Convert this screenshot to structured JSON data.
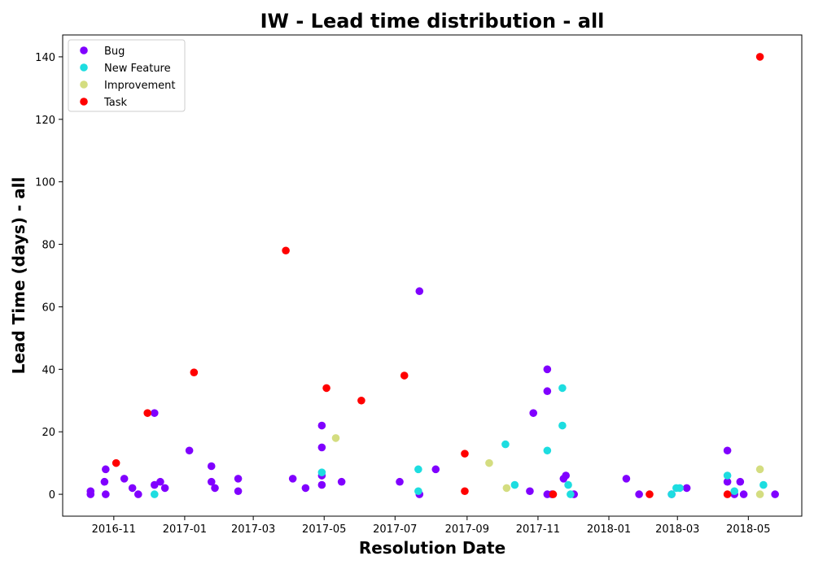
{
  "chart_data": {
    "type": "scatter",
    "title": "IW - Lead time distribution - all",
    "xlabel": "Resolution Date",
    "ylabel": "Lead Time (days) - all",
    "xlim": [
      "2016-09-18",
      "2018-06-16"
    ],
    "ylim": [
      -7,
      147
    ],
    "x_ticks": [
      "2016-11",
      "2017-01",
      "2017-03",
      "2017-05",
      "2017-07",
      "2017-09",
      "2017-11",
      "2018-01",
      "2018-03",
      "2018-05"
    ],
    "y_ticks": [
      0,
      20,
      40,
      60,
      80,
      100,
      120,
      140
    ],
    "grid": false,
    "legend_position": "upper-left",
    "series": [
      {
        "name": "Bug",
        "color": "#8000ff",
        "points": [
          [
            "2016-10-12",
            1
          ],
          [
            "2016-10-12",
            0
          ],
          [
            "2016-10-24",
            4
          ],
          [
            "2016-10-25",
            8
          ],
          [
            "2016-10-25",
            0
          ],
          [
            "2016-11-10",
            5
          ],
          [
            "2016-11-17",
            2
          ],
          [
            "2016-11-22",
            0
          ],
          [
            "2016-12-06",
            3
          ],
          [
            "2016-12-06",
            26
          ],
          [
            "2016-12-11",
            4
          ],
          [
            "2016-12-15",
            2
          ],
          [
            "2017-01-05",
            14
          ],
          [
            "2017-01-24",
            9
          ],
          [
            "2017-01-24",
            4
          ],
          [
            "2017-01-27",
            2
          ],
          [
            "2017-02-16",
            5
          ],
          [
            "2017-02-16",
            1
          ],
          [
            "2017-04-04",
            5
          ],
          [
            "2017-04-15",
            2
          ],
          [
            "2017-04-29",
            22
          ],
          [
            "2017-04-29",
            15
          ],
          [
            "2017-04-29",
            6
          ],
          [
            "2017-04-29",
            3
          ],
          [
            "2017-05-16",
            4
          ],
          [
            "2017-07-05",
            4
          ],
          [
            "2017-07-22",
            65
          ],
          [
            "2017-07-22",
            0
          ],
          [
            "2017-08-05",
            8
          ],
          [
            "2017-10-25",
            1
          ],
          [
            "2017-10-28",
            26
          ],
          [
            "2017-11-09",
            40
          ],
          [
            "2017-11-09",
            33
          ],
          [
            "2017-11-09",
            0
          ],
          [
            "2017-11-13",
            0
          ],
          [
            "2017-11-23",
            5
          ],
          [
            "2017-11-25",
            6
          ],
          [
            "2017-12-02",
            0
          ],
          [
            "2018-01-16",
            5
          ],
          [
            "2018-01-27",
            0
          ],
          [
            "2018-02-24",
            0
          ],
          [
            "2018-03-09",
            2
          ],
          [
            "2018-04-13",
            14
          ],
          [
            "2018-04-13",
            4
          ],
          [
            "2018-04-19",
            0
          ],
          [
            "2018-04-24",
            4
          ],
          [
            "2018-04-27",
            0
          ],
          [
            "2018-05-24",
            0
          ]
        ]
      },
      {
        "name": "New Feature",
        "color": "#1ddde0",
        "points": [
          [
            "2016-12-06",
            0
          ],
          [
            "2017-04-29",
            7
          ],
          [
            "2017-07-21",
            8
          ],
          [
            "2017-07-21",
            1
          ],
          [
            "2017-10-04",
            16
          ],
          [
            "2017-10-12",
            3
          ],
          [
            "2017-11-09",
            14
          ],
          [
            "2017-11-22",
            34
          ],
          [
            "2017-11-22",
            22
          ],
          [
            "2017-11-27",
            3
          ],
          [
            "2017-11-29",
            0
          ],
          [
            "2018-02-24",
            0
          ],
          [
            "2018-02-28",
            2
          ],
          [
            "2018-03-03",
            2
          ],
          [
            "2018-04-13",
            6
          ],
          [
            "2018-04-19",
            1
          ],
          [
            "2018-05-14",
            3
          ]
        ]
      },
      {
        "name": "Improvement",
        "color": "#d4dd80",
        "points": [
          [
            "2017-05-11",
            18
          ],
          [
            "2017-09-20",
            10
          ],
          [
            "2017-10-05",
            2
          ],
          [
            "2018-05-11",
            8
          ],
          [
            "2018-05-11",
            0
          ]
        ]
      },
      {
        "name": "Task",
        "color": "#ff0000",
        "points": [
          [
            "2016-11-03",
            10
          ],
          [
            "2016-11-30",
            26
          ],
          [
            "2017-01-09",
            39
          ],
          [
            "2017-03-29",
            78
          ],
          [
            "2017-05-03",
            34
          ],
          [
            "2017-06-02",
            30
          ],
          [
            "2017-07-09",
            38
          ],
          [
            "2017-08-30",
            13
          ],
          [
            "2017-08-30",
            1
          ],
          [
            "2017-11-14",
            0
          ],
          [
            "2018-02-05",
            0
          ],
          [
            "2018-04-13",
            0
          ],
          [
            "2018-05-11",
            140
          ]
        ]
      }
    ]
  }
}
